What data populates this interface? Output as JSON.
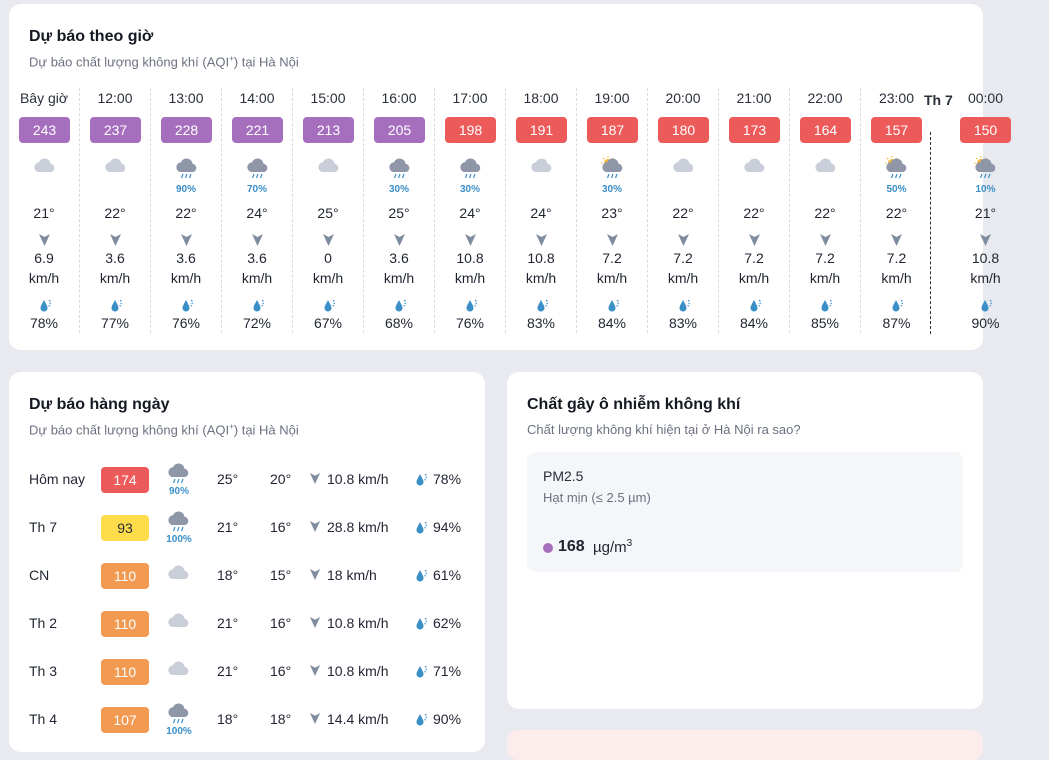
{
  "colors": {
    "aqi_purple": "#a66fbd",
    "aqi_red": "#ec5a5a",
    "aqi_orange": "#f39a52",
    "aqi_yellow": "#fedc4a",
    "rain_pct": "#3b8fc7"
  },
  "hourly": {
    "title": "Dự báo theo giờ",
    "subtitle_prefix": "Dự báo chất lượng không khí (AQI",
    "subtitle_sup": "+",
    "subtitle_suffix": ") tại Hà Nội",
    "wind_unit": "km/h",
    "day_marker": "Th 7",
    "items": [
      {
        "time": "Bây giờ",
        "aqi": "243",
        "level": "purple",
        "icon": "cloud-icon",
        "precip": "",
        "temp": "21°",
        "wind": "6.9",
        "humidity": "78%"
      },
      {
        "time": "12:00",
        "aqi": "237",
        "level": "purple",
        "icon": "cloud-icon",
        "precip": "",
        "temp": "22°",
        "wind": "3.6",
        "humidity": "77%"
      },
      {
        "time": "13:00",
        "aqi": "228",
        "level": "purple",
        "icon": "rain-cloud-icon",
        "precip": "90%",
        "temp": "22°",
        "wind": "3.6",
        "humidity": "76%"
      },
      {
        "time": "14:00",
        "aqi": "221",
        "level": "purple",
        "icon": "rain-cloud-icon",
        "precip": "70%",
        "temp": "24°",
        "wind": "3.6",
        "humidity": "72%"
      },
      {
        "time": "15:00",
        "aqi": "213",
        "level": "purple",
        "icon": "cloud-icon",
        "precip": "",
        "temp": "25°",
        "wind": "0",
        "humidity": "67%"
      },
      {
        "time": "16:00",
        "aqi": "205",
        "level": "purple",
        "icon": "rain-cloud-icon",
        "precip": "30%",
        "temp": "25°",
        "wind": "3.6",
        "humidity": "68%"
      },
      {
        "time": "17:00",
        "aqi": "198",
        "level": "red",
        "icon": "rain-cloud-icon",
        "precip": "30%",
        "temp": "24°",
        "wind": "10.8",
        "humidity": "76%"
      },
      {
        "time": "18:00",
        "aqi": "191",
        "level": "red",
        "icon": "cloud-icon",
        "precip": "",
        "temp": "24°",
        "wind": "10.8",
        "humidity": "83%"
      },
      {
        "time": "19:00",
        "aqi": "187",
        "level": "red",
        "icon": "partly-rain-icon",
        "precip": "30%",
        "temp": "23°",
        "wind": "7.2",
        "humidity": "84%"
      },
      {
        "time": "20:00",
        "aqi": "180",
        "level": "red",
        "icon": "cloud-icon",
        "precip": "",
        "temp": "22°",
        "wind": "7.2",
        "humidity": "83%"
      },
      {
        "time": "21:00",
        "aqi": "173",
        "level": "red",
        "icon": "cloud-icon",
        "precip": "",
        "temp": "22°",
        "wind": "7.2",
        "humidity": "84%"
      },
      {
        "time": "22:00",
        "aqi": "164",
        "level": "red",
        "icon": "cloud-icon",
        "precip": "",
        "temp": "22°",
        "wind": "7.2",
        "humidity": "85%"
      },
      {
        "time": "23:00",
        "aqi": "157",
        "level": "red",
        "icon": "partly-rain-icon",
        "precip": "50%",
        "temp": "22°",
        "wind": "7.2",
        "humidity": "87%"
      },
      {
        "time": "00:00",
        "aqi": "150",
        "level": "red",
        "icon": "partly-rain-icon",
        "precip": "10%",
        "temp": "21°",
        "wind": "10.8",
        "humidity": "90%"
      }
    ]
  },
  "daily": {
    "title": "Dự báo hàng ngày",
    "subtitle_prefix": "Dự báo chất lượng không khí (AQI",
    "subtitle_sup": "+",
    "subtitle_suffix": ") tại Hà Nội",
    "items": [
      {
        "day": "Hôm nay",
        "aqi": "174",
        "level": "red",
        "icon": "rain-cloud-icon",
        "precip": "90%",
        "max": "25°",
        "min": "20°",
        "wind": "10.8 km/h",
        "humidity": "78%"
      },
      {
        "day": "Th 7",
        "aqi": "93",
        "level": "yellow",
        "icon": "rain-cloud-icon",
        "precip": "100%",
        "max": "21°",
        "min": "16°",
        "wind": "28.8 km/h",
        "humidity": "94%"
      },
      {
        "day": "CN",
        "aqi": "110",
        "level": "orange",
        "icon": "cloud-icon",
        "precip": "",
        "max": "18°",
        "min": "15°",
        "wind": "18 km/h",
        "humidity": "61%"
      },
      {
        "day": "Th 2",
        "aqi": "110",
        "level": "orange",
        "icon": "cloud-icon",
        "precip": "",
        "max": "21°",
        "min": "16°",
        "wind": "10.8 km/h",
        "humidity": "62%"
      },
      {
        "day": "Th 3",
        "aqi": "110",
        "level": "orange",
        "icon": "cloud-icon",
        "precip": "",
        "max": "21°",
        "min": "16°",
        "wind": "10.8 km/h",
        "humidity": "71%"
      },
      {
        "day": "Th 4",
        "aqi": "107",
        "level": "orange",
        "icon": "rain-cloud-icon",
        "precip": "100%",
        "max": "18°",
        "min": "18°",
        "wind": "14.4 km/h",
        "humidity": "90%"
      }
    ]
  },
  "pollutants": {
    "title": "Chất gây ô nhiễm không khí",
    "subtitle": "Chất lượng không khí hiện tại ở Hà Nội ra sao?",
    "items": [
      {
        "name": "PM2.5",
        "description": "Hạt mịn (≤ 2.5 µm)",
        "value": "168",
        "unit_base": "µg/m",
        "unit_sup": "3"
      }
    ]
  }
}
